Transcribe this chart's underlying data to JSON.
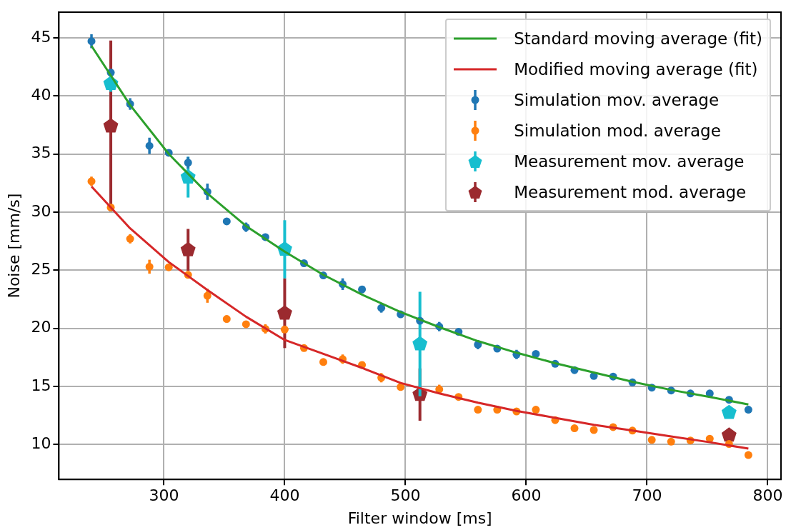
{
  "chart_data": {
    "type": "scatter",
    "xlabel": "Filter window [ms]",
    "ylabel": "Noise [mm/s]",
    "xlim": [
      213,
      811
    ],
    "xticks": [
      300,
      400,
      500,
      600,
      700,
      800
    ],
    "ylim": [
      7.0,
      47.2
    ],
    "yticks": [
      10,
      15,
      20,
      25,
      30,
      35,
      40,
      45
    ],
    "grid": true,
    "legend": "top right",
    "x": [
      240,
      256,
      272,
      288,
      304,
      320,
      336,
      352,
      368,
      384,
      400,
      416,
      432,
      448,
      464,
      480,
      496,
      512,
      528,
      544,
      560,
      576,
      592,
      608,
      624,
      640,
      656,
      672,
      688,
      704,
      720,
      736,
      752,
      768,
      784
    ],
    "series": [
      {
        "name": "Standard moving average (fit)",
        "type": "line",
        "color": "#2ca02c",
        "marker": "none",
        "line_style": "solid",
        "x": [
          240,
          272,
          304,
          336,
          368,
          400,
          432,
          464,
          496,
          528,
          560,
          592,
          624,
          656,
          688,
          720,
          752,
          784
        ],
        "values": [
          44.3,
          39.2,
          35.0,
          31.6,
          28.8,
          26.6,
          24.6,
          22.9,
          21.4,
          20.1,
          18.9,
          17.9,
          17.0,
          16.2,
          15.4,
          14.7,
          14.1,
          13.45
        ]
      },
      {
        "name": "Modified moving average (fit)",
        "type": "line",
        "color": "#d62728",
        "marker": "none",
        "line_style": "solid",
        "x": [
          240,
          272,
          304,
          336,
          368,
          400,
          432,
          464,
          496,
          528,
          560,
          592,
          624,
          656,
          688,
          720,
          752,
          784
        ],
        "values": [
          32.2,
          28.6,
          25.7,
          23.3,
          21.0,
          19.0,
          17.8,
          16.6,
          15.3,
          14.4,
          13.6,
          12.9,
          12.3,
          11.7,
          11.2,
          10.7,
          10.2,
          9.65
        ]
      },
      {
        "name": "Simulation mov. average",
        "color": "#1f77b4",
        "marker": "circle",
        "values": [
          44.7,
          42.0,
          39.3,
          35.7,
          35.1,
          34.25,
          31.75,
          29.2,
          28.7,
          27.85,
          null,
          25.6,
          24.55,
          23.8,
          23.35,
          21.75,
          21.2,
          20.65,
          20.15,
          19.7,
          18.6,
          18.25,
          17.75,
          17.8,
          16.95,
          16.4,
          15.9,
          15.85,
          15.35,
          14.9,
          14.65,
          14.4,
          14.4,
          13.85,
          13.0
        ],
        "errors": [
          0.6,
          null,
          0.5,
          0.7,
          null,
          0.5,
          0.7,
          null,
          0.4,
          null,
          null,
          null,
          null,
          0.5,
          null,
          0.4,
          null,
          null,
          0.4,
          null,
          0.4,
          null,
          0.4,
          null,
          null,
          null,
          null,
          null,
          null,
          null,
          null,
          null,
          null,
          null,
          null
        ]
      },
      {
        "name": "Simulation mod. average",
        "color": "#ff7f0e",
        "marker": "circle",
        "values": [
          32.65,
          30.4,
          27.7,
          25.3,
          25.25,
          24.6,
          22.8,
          20.8,
          20.35,
          19.95,
          19.9,
          18.3,
          17.1,
          17.35,
          16.85,
          15.75,
          14.95,
          null,
          14.75,
          14.1,
          13.0,
          13.0,
          12.85,
          13.0,
          12.1,
          11.4,
          11.25,
          11.5,
          11.2,
          10.4,
          10.25,
          10.35,
          10.5,
          10.05,
          9.1
        ],
        "errors": [
          0.4,
          null,
          0.4,
          0.6,
          null,
          null,
          0.6,
          0.3,
          null,
          0.4,
          null,
          null,
          null,
          0.4,
          null,
          0.4,
          null,
          null,
          0.4,
          null,
          null,
          null,
          null,
          null,
          null,
          null,
          null,
          null,
          null,
          null,
          null,
          null,
          null,
          null,
          null
        ]
      },
      {
        "name": "Measurement mov. average",
        "color": "#17becf",
        "x": [
          256,
          320,
          400,
          512,
          768
        ],
        "values": [
          41.05,
          33.0,
          26.8,
          18.65,
          12.75
        ],
        "errors": [
          0.7,
          1.75,
          2.5,
          4.5,
          null
        ]
      },
      {
        "name": "Measurement mod. average",
        "color": "#9b2a2f",
        "x": [
          256,
          320,
          400,
          512,
          768
        ],
        "values": [
          37.4,
          26.75,
          21.3,
          14.3,
          10.8
        ],
        "errors": [
          7.35,
          1.8,
          3.0,
          2.25,
          null
        ]
      }
    ]
  }
}
